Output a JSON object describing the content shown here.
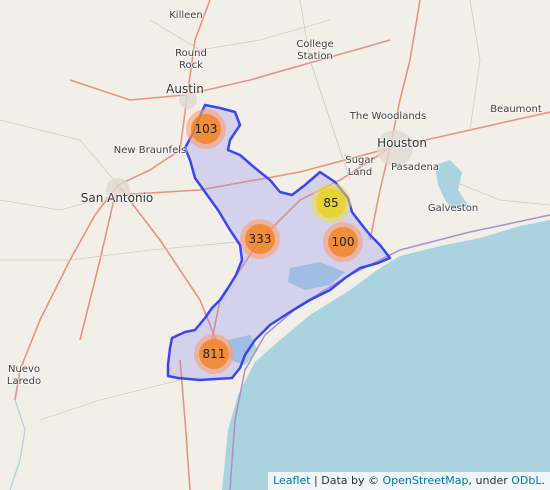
{
  "colors": {
    "water": "#aad3df",
    "land": "#f2efe9",
    "region_fill": "#8b8bf2",
    "region_stroke": "#3b46f2",
    "highway": "#e8937d",
    "cluster_medium": "#f18017",
    "cluster_small": "#e6d21e"
  },
  "cities": [
    {
      "id": "killeen",
      "name": "Killeen"
    },
    {
      "id": "round-rock",
      "name": "Round\nRock"
    },
    {
      "id": "college-station",
      "name": "College\nStation"
    },
    {
      "id": "austin",
      "name": "Austin"
    },
    {
      "id": "the-woodlands",
      "name": "The Woodlands"
    },
    {
      "id": "beaumont",
      "name": "Beaumont"
    },
    {
      "id": "new-braunfels",
      "name": "New Braunfels"
    },
    {
      "id": "houston",
      "name": "Houston"
    },
    {
      "id": "sugar-land",
      "name": "Sugar\nLand"
    },
    {
      "id": "pasadena",
      "name": "Pasadena"
    },
    {
      "id": "san-antonio",
      "name": "San Antonio"
    },
    {
      "id": "galveston",
      "name": "Galveston"
    },
    {
      "id": "nuevo-laredo",
      "name": "Nuevo\nLaredo"
    }
  ],
  "clusters": [
    {
      "id": "austin-cluster",
      "count": "103",
      "size": "medium"
    },
    {
      "id": "bay-city-cluster",
      "count": "85",
      "size": "small"
    },
    {
      "id": "victoria-cluster",
      "count": "333",
      "size": "medium"
    },
    {
      "id": "matagorda-cluster",
      "count": "100",
      "size": "medium"
    },
    {
      "id": "corpus-christi-cluster",
      "count": "811",
      "size": "medium"
    }
  ],
  "attribution": {
    "leaflet": "Leaflet",
    "separator": " | Data by © ",
    "osm": "OpenStreetMap",
    "under": ", under ",
    "odbl": "ODbL",
    "end": "."
  }
}
